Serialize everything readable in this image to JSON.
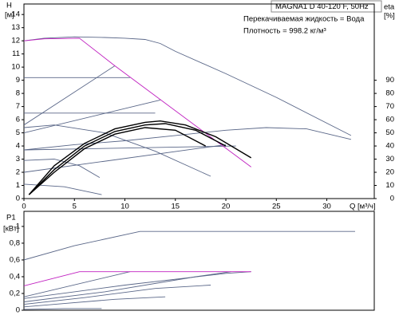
{
  "chart_data": [
    {
      "type": "line",
      "title": "MAGNA1 D 40-120 F, 50Hz",
      "annotations": [
        "Перекачиваемая жидкость = Вода",
        "Плотность = 998.2 кг/м³"
      ],
      "ylabel": "H",
      "ylabel_unit": "[м]",
      "y2label": "eta",
      "y2label_unit": "[%]",
      "xlabel": "Q [м³/ч]",
      "xlim": [
        0,
        34.7
      ],
      "xticks": [
        0,
        5,
        10,
        15,
        20,
        25,
        30
      ],
      "ylim": [
        0,
        14.8
      ],
      "yticks": [
        0,
        1,
        2,
        3,
        4,
        5,
        6,
        7,
        8,
        9,
        10,
        11,
        12,
        13,
        14
      ],
      "y2lim": [
        0,
        148
      ],
      "y2ticks": [
        0,
        10,
        20,
        30,
        40,
        50,
        60,
        70,
        80,
        90
      ],
      "series": [
        {
          "color": "#5a6788",
          "x": [
            0,
            2,
            5,
            8,
            10,
            12,
            13.5,
            15,
            20,
            25,
            32.4
          ],
          "values": [
            12.0,
            12.2,
            12.3,
            12.25,
            12.2,
            12.1,
            11.8,
            11.2,
            9.5,
            7.7,
            4.8
          ]
        },
        {
          "color": "#5a6788",
          "x": [
            0,
            5,
            10,
            15,
            20,
            24,
            28,
            32.4
          ],
          "values": [
            3.7,
            4.1,
            4.4,
            4.8,
            5.2,
            5.4,
            5.3,
            4.5
          ]
        },
        {
          "color": "#5a6788",
          "x": [
            0,
            10.5
          ],
          "values": [
            9.2,
            9.2
          ]
        },
        {
          "color": "#5a6788",
          "x": [
            0,
            3,
            8,
            13,
            18.5
          ],
          "values": [
            5.4,
            5.6,
            5.0,
            3.6,
            1.7
          ]
        },
        {
          "color": "#5a6788",
          "x": [
            0,
            3,
            5.5,
            7.5
          ],
          "values": [
            2.9,
            3.0,
            2.5,
            1.6
          ]
        },
        {
          "color": "#5a6788",
          "x": [
            0,
            4,
            7.7
          ],
          "values": [
            1.1,
            0.9,
            0.3
          ]
        },
        {
          "color": "#5a6788",
          "x": [
            0,
            9
          ],
          "values": [
            5.6,
            10.1
          ]
        },
        {
          "color": "#5a6788",
          "x": [
            0,
            13.5
          ],
          "values": [
            5.0,
            7.5
          ]
        },
        {
          "color": "#5a6788",
          "x": [
            0,
            20
          ],
          "values": [
            2.0,
            4.1
          ]
        },
        {
          "color": "#5a6788",
          "x": [
            0,
            21
          ],
          "values": [
            3.7,
            4.0
          ]
        },
        {
          "color": "#5a6788",
          "x": [
            0,
            13
          ],
          "values": [
            6.5,
            6.5
          ]
        },
        {
          "color": "#c020c0",
          "x": [
            0,
            2,
            5.5,
            9,
            22.5
          ],
          "values": [
            12.0,
            12.15,
            12.2,
            10.1,
            2.4
          ]
        },
        {
          "color": "#000000",
          "axis": "y2",
          "x": [
            0.5,
            3,
            6,
            9,
            12,
            13.5,
            16,
            19,
            22.5
          ],
          "values": [
            3,
            25,
            42,
            53,
            58,
            59,
            56,
            47,
            31
          ]
        },
        {
          "color": "#000000",
          "axis": "y2",
          "x": [
            0.5,
            3,
            6,
            9,
            12,
            14,
            17,
            20
          ],
          "values": [
            3,
            22,
            40,
            51,
            56,
            57,
            52,
            40
          ]
        },
        {
          "color": "#000000",
          "axis": "y2",
          "x": [
            0.5,
            3,
            6,
            9,
            12,
            15,
            18
          ],
          "values": [
            3,
            20,
            38,
            49,
            54,
            52,
            40
          ]
        }
      ]
    },
    {
      "type": "line",
      "ylabel": "P1",
      "ylabel_unit": "[кВт]",
      "xlim": [
        0,
        34.7
      ],
      "ylim": [
        0,
        1.18
      ],
      "yticks": [
        0,
        {
          "value": 0.2,
          "label": "0,2"
        },
        {
          "value": 0.4,
          "label": "0,4"
        },
        {
          "value": 0.6,
          "label": "0,6"
        },
        {
          "value": 0.8,
          "label": "0,8"
        },
        1
      ],
      "series": [
        {
          "color": "#5a6788",
          "x": [
            0,
            5,
            11.5,
            32.8
          ],
          "values": [
            0.6,
            0.77,
            0.94,
            0.94
          ]
        },
        {
          "color": "#5a6788",
          "x": [
            0,
            10,
            20,
            22.5
          ],
          "values": [
            0.14,
            0.3,
            0.44,
            0.46
          ]
        },
        {
          "color": "#5a6788",
          "x": [
            0,
            8,
            17,
            20.5
          ],
          "values": [
            0.1,
            0.22,
            0.4,
            0.46
          ]
        },
        {
          "color": "#5a6788",
          "x": [
            0,
            6,
            13,
            18.5
          ],
          "values": [
            0.07,
            0.15,
            0.26,
            0.3
          ]
        },
        {
          "color": "#5a6788",
          "x": [
            0,
            4,
            9,
            14
          ],
          "values": [
            0.04,
            0.08,
            0.13,
            0.16
          ]
        },
        {
          "color": "#5a6788",
          "x": [
            0,
            4,
            7.7
          ],
          "values": [
            0.01,
            0.02,
            0.02
          ]
        },
        {
          "color": "#5a6788",
          "x": [
            0,
            10.5
          ],
          "values": [
            0.16,
            0.46
          ]
        },
        {
          "color": "#c020c0",
          "x": [
            0,
            5.5,
            22.5
          ],
          "values": [
            0.29,
            0.46,
            0.46
          ]
        }
      ]
    }
  ]
}
